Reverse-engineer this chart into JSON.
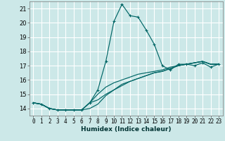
{
  "title": "",
  "xlabel": "Humidex (Indice chaleur)",
  "ylabel": "",
  "bg_color": "#cce8e8",
  "grid_color": "#ffffff",
  "line_color": "#006666",
  "xlim": [
    -0.5,
    23.5
  ],
  "ylim": [
    13.5,
    21.5
  ],
  "xticks": [
    0,
    1,
    2,
    3,
    4,
    5,
    6,
    7,
    8,
    9,
    10,
    11,
    12,
    13,
    14,
    15,
    16,
    17,
    18,
    19,
    20,
    21,
    22,
    23
  ],
  "yticks": [
    14,
    15,
    16,
    17,
    18,
    19,
    20,
    21
  ],
  "series": [
    [
      14.4,
      14.3,
      14.0,
      13.9,
      13.9,
      13.9,
      13.9,
      14.4,
      15.3,
      17.3,
      20.1,
      21.3,
      20.5,
      20.4,
      19.5,
      18.5,
      17.0,
      16.7,
      17.1,
      17.1,
      17.0,
      17.2,
      16.9,
      17.1
    ],
    [
      14.4,
      14.3,
      14.0,
      13.9,
      13.9,
      13.9,
      13.9,
      14.0,
      14.3,
      14.9,
      15.3,
      15.7,
      15.9,
      16.1,
      16.3,
      16.5,
      16.6,
      16.8,
      17.0,
      17.1,
      17.2,
      17.3,
      17.1,
      17.1
    ],
    [
      14.4,
      14.3,
      14.0,
      13.9,
      13.9,
      13.9,
      13.9,
      14.4,
      14.6,
      15.0,
      15.3,
      15.6,
      15.9,
      16.1,
      16.3,
      16.5,
      16.6,
      16.8,
      17.0,
      17.1,
      17.2,
      17.3,
      17.1,
      17.1
    ],
    [
      14.4,
      14.3,
      14.0,
      13.9,
      13.9,
      13.9,
      13.9,
      14.4,
      15.0,
      15.5,
      15.8,
      16.0,
      16.2,
      16.4,
      16.5,
      16.6,
      16.7,
      16.9,
      17.0,
      17.1,
      17.2,
      17.3,
      17.1,
      17.1
    ]
  ],
  "xlabel_fontsize": 6.5,
  "xlabel_bold": true,
  "tick_fontsize": 5.5,
  "ytick_fontsize": 6.0,
  "linewidth": 0.85,
  "marker": "+",
  "marker_size": 3.2,
  "marker_lw": 0.8
}
